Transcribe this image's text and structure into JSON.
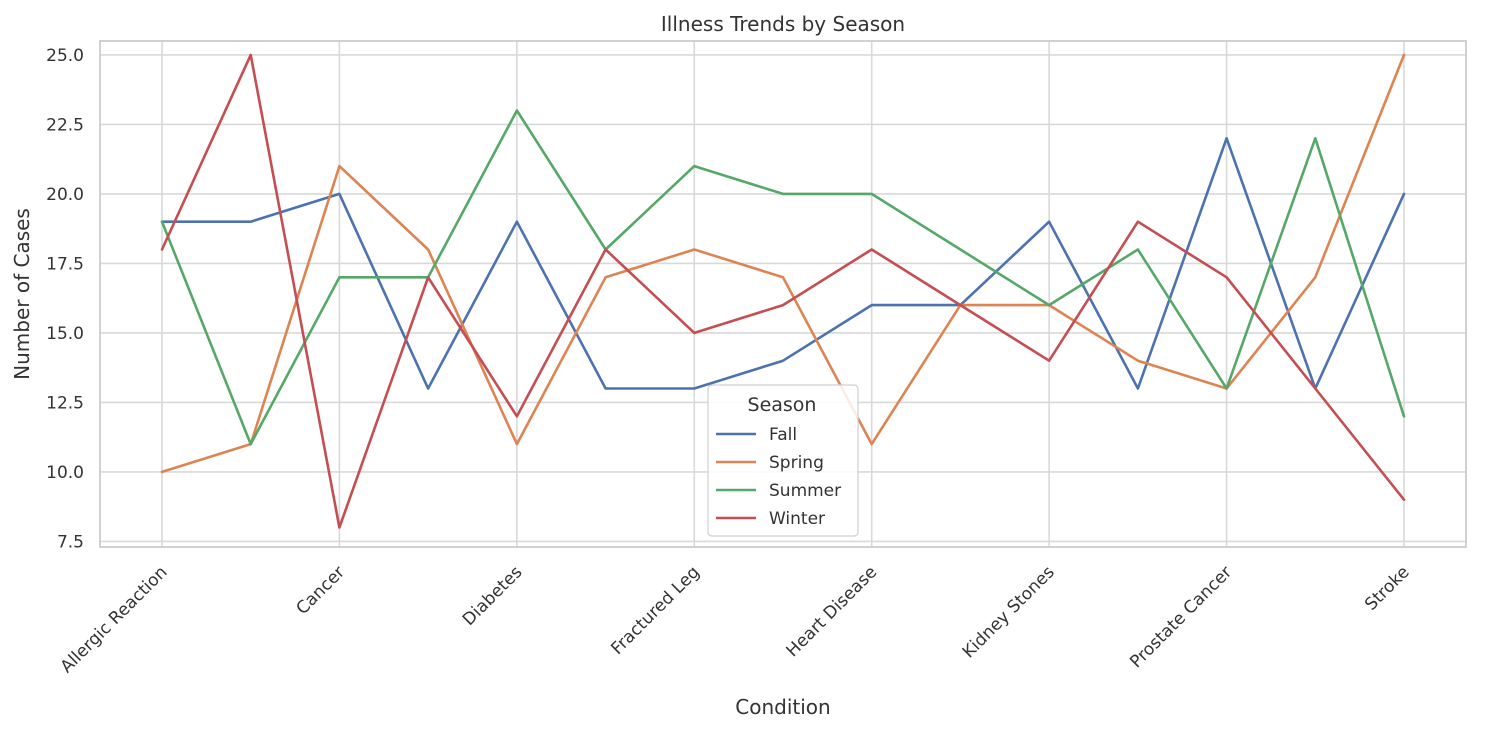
{
  "chart_data": {
    "type": "line",
    "title": "Illness Trends by Season",
    "xlabel": "Condition",
    "ylabel": "Number of Cases",
    "ylim": [
      7.3,
      25.5
    ],
    "yticks": [
      7.5,
      10.0,
      12.5,
      15.0,
      17.5,
      20.0,
      22.5,
      25.0
    ],
    "ytick_labels": [
      "7.5",
      "10.0",
      "12.5",
      "15.0",
      "17.5",
      "20.0",
      "22.5",
      "25.0"
    ],
    "categories": [
      "Allergic Reaction",
      "",
      "Cancer",
      "",
      "Diabetes",
      "",
      "Fractured Leg",
      "",
      "Heart Disease",
      "",
      "Kidney Stones",
      "",
      "Prostate Cancer",
      "",
      "Stroke"
    ],
    "xtick_labels": [
      {
        "index": 0,
        "label": "Allergic Reaction"
      },
      {
        "index": 2,
        "label": "Cancer"
      },
      {
        "index": 4,
        "label": "Diabetes"
      },
      {
        "index": 6,
        "label": "Fractured Leg"
      },
      {
        "index": 8,
        "label": "Heart Disease"
      },
      {
        "index": 10,
        "label": "Kidney Stones"
      },
      {
        "index": 12,
        "label": "Prostate Cancer"
      },
      {
        "index": 14,
        "label": "Stroke"
      }
    ],
    "grid": true,
    "legend": {
      "title": "Season",
      "placement": "lower-center"
    },
    "series": [
      {
        "name": "Fall",
        "color": "#4c72b0",
        "values": [
          19,
          19,
          20,
          13,
          19,
          13,
          13,
          14,
          16,
          16,
          19,
          13,
          22,
          13,
          20
        ]
      },
      {
        "name": "Spring",
        "color": "#dd8452",
        "values": [
          10,
          11,
          21,
          18,
          11,
          17,
          18,
          17,
          11,
          16,
          16,
          14,
          13,
          17,
          25
        ]
      },
      {
        "name": "Summer",
        "color": "#55a868",
        "values": [
          19,
          11,
          17,
          17,
          23,
          18,
          21,
          20,
          20,
          18,
          16,
          18,
          13,
          22,
          12
        ]
      },
      {
        "name": "Winter",
        "color": "#c44e52",
        "values": [
          18,
          25,
          8,
          17,
          12,
          18,
          15,
          16,
          18,
          16,
          14,
          19,
          17,
          13,
          9
        ]
      }
    ]
  }
}
